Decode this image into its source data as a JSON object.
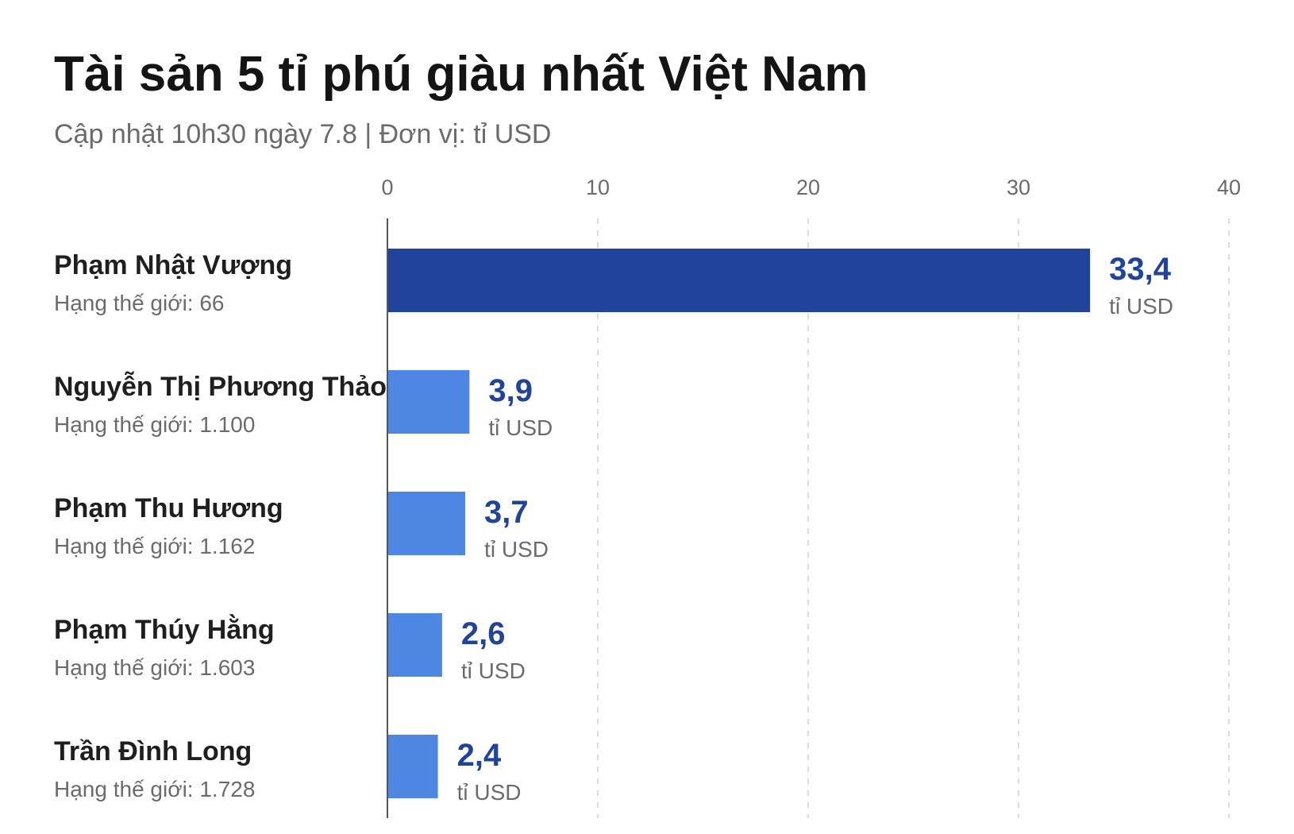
{
  "colors": {
    "primary_bar": "#20449c",
    "secondary_bar": "#4e86e3",
    "value_text": "#20449c",
    "grid": "#d0d0d0",
    "axis": "#555555"
  },
  "chart_data": {
    "type": "bar",
    "orientation": "horizontal",
    "title": "Tài sản 5 tỉ phú giàu nhất Việt Nam",
    "subtitle": "Cập nhật 10h30 ngày 7.8 | Đơn vị: tỉ USD",
    "xlim": [
      0,
      40
    ],
    "x_ticks": [
      0,
      10,
      20,
      30,
      40
    ],
    "x_tick_labels": [
      "0",
      "10",
      "20",
      "30",
      "40"
    ],
    "grid": true,
    "grid_style": "dashed",
    "categories": [
      "Phạm Nhật Vượng",
      "Nguyễn Thị Phương Thảo",
      "Phạm Thu Hương",
      "Phạm Thúy Hằng",
      "Trần Đình Long"
    ],
    "ranks": [
      "Hạng thế giới: 66",
      "Hạng thế giới: 1.100",
      "Hạng thế giới: 1.162",
      "Hạng thế giới: 1.603",
      "Hạng thế giới: 1.728"
    ],
    "values": [
      33.4,
      3.9,
      3.7,
      2.6,
      2.4
    ],
    "value_labels": [
      "33,4",
      "3,9",
      "3,7",
      "2,6",
      "2,4"
    ],
    "unit_label": "tỉ USD"
  }
}
